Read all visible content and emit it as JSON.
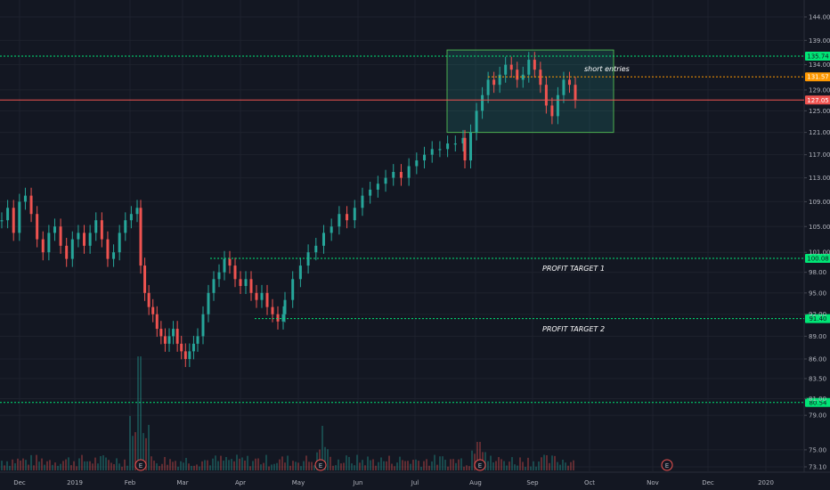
{
  "chart_data": {
    "type": "candlestick",
    "title": "",
    "y_axis": {
      "scale": "log",
      "ticks": [
        "144.00",
        "139.00",
        "134.00",
        "129.00",
        "125.00",
        "121.00",
        "117.00",
        "113.00",
        "109.00",
        "105.00",
        "101.00",
        "98.00",
        "95.00",
        "92.00",
        "89.00",
        "86.00",
        "83.50",
        "81.00",
        "79.00",
        "75.00",
        "73.10"
      ]
    },
    "x_axis": {
      "ticks": [
        "Dec",
        "2019",
        "Feb",
        "Mar",
        "Apr",
        "May",
        "Jun",
        "Jul",
        "Aug",
        "Sep",
        "Oct",
        "Nov",
        "Dec",
        "2020"
      ]
    },
    "horizontal_levels": [
      {
        "value": 135.74,
        "label": "135.74",
        "color": "#00e676",
        "style": "dotted"
      },
      {
        "value": 131.57,
        "label": "131.57",
        "color": "#ff9800",
        "style": "dotted"
      },
      {
        "value": 127.05,
        "label": "127.05",
        "color": "#ef5350",
        "style": "solid"
      },
      {
        "value": 100.08,
        "label": "100.08",
        "color": "#00e676",
        "style": "dotted"
      },
      {
        "value": 91.4,
        "label": "91.40",
        "color": "#00e676",
        "style": "dotted"
      },
      {
        "value": 80.54,
        "label": "80.54",
        "color": "#00e676",
        "style": "dotted"
      }
    ],
    "annotations": [
      {
        "text": "short entries",
        "price": 133.2
      },
      {
        "text": "PROFIT TARGET 1",
        "price": 98.6
      },
      {
        "text": "PROFIT TARGET 2",
        "price": 90.0
      }
    ],
    "rectangle": {
      "price_top": 137.0,
      "price_bottom": 121.0,
      "color": "#26a69a",
      "border": "#4caf50"
    },
    "earnings_markers": [
      "E",
      "E",
      "E",
      "E"
    ],
    "candles_series": [
      {
        "period": "Nov-Dec 2018",
        "closes": [
          106,
          108,
          104,
          109,
          110,
          107,
          103,
          101,
          104,
          105,
          102,
          100,
          103,
          104,
          102,
          104,
          106,
          103,
          100,
          101,
          104,
          106,
          107,
          108
        ]
      },
      {
        "period": "Feb 2019",
        "closes": [
          99,
          95,
          93,
          92,
          90,
          89,
          88,
          89,
          90,
          88,
          87,
          86,
          87,
          88,
          89
        ]
      },
      {
        "period": "Mar-Apr 2019",
        "closes": [
          92,
          95,
          97,
          98,
          100,
          99,
          97,
          96,
          97,
          95,
          94,
          95,
          93,
          92,
          91,
          92
        ]
      },
      {
        "period": "May-Jul 2019",
        "closes": [
          94,
          97,
          99,
          101,
          102,
          104,
          105,
          107,
          106,
          108,
          110,
          111,
          112,
          113,
          114,
          113,
          115,
          116,
          117,
          118,
          118,
          119,
          119,
          120
        ]
      },
      {
        "period": "Aug-Sep 2019",
        "closes": [
          116,
          121,
          125,
          128,
          131,
          130,
          132,
          134,
          133,
          131,
          132,
          135,
          133,
          130,
          126,
          124,
          128,
          131,
          130,
          127
        ]
      }
    ],
    "volume_peaks": [
      {
        "month": "Feb",
        "value": 1.0
      },
      {
        "month": "May",
        "value": 0.45
      },
      {
        "month": "Aug",
        "value": 0.35
      }
    ],
    "colors": {
      "up": "#26a69a",
      "down": "#ef5350",
      "background": "#131722",
      "grid": "#1e222d"
    }
  }
}
